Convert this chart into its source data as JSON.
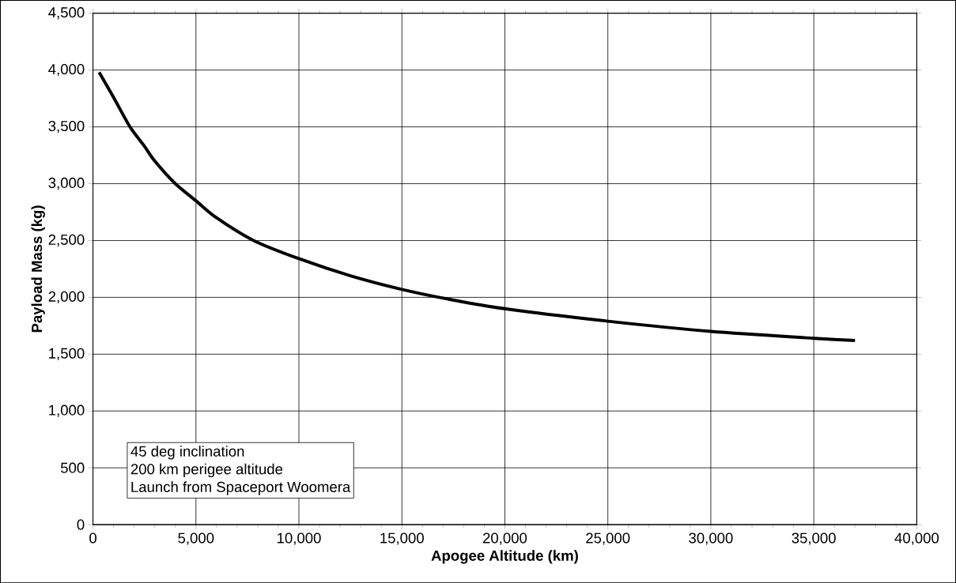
{
  "chart_data": {
    "type": "line",
    "xlabel": "Apogee Altitude (km)",
    "ylabel": "Payload Mass (kg)",
    "x": [
      300,
      1000,
      1800,
      2500,
      3000,
      4000,
      5000,
      6000,
      7800,
      10000,
      12500,
      15000,
      17100,
      20000,
      25000,
      30000,
      35000,
      37000
    ],
    "values": [
      3980,
      3760,
      3500,
      3330,
      3200,
      3000,
      2850,
      2700,
      2500,
      2340,
      2190,
      2070,
      1990,
      1900,
      1790,
      1700,
      1640,
      1620
    ],
    "color": "#000000",
    "xlim": [
      0,
      40000
    ],
    "ylim": [
      0,
      4500
    ],
    "xticks": [
      {
        "value": 0,
        "label": "0"
      },
      {
        "value": 5000,
        "label": "5,000"
      },
      {
        "value": 10000,
        "label": "10,000"
      },
      {
        "value": 15000,
        "label": "15,000"
      },
      {
        "value": 20000,
        "label": "20,000"
      },
      {
        "value": 25000,
        "label": "25,000"
      },
      {
        "value": 30000,
        "label": "30,000"
      },
      {
        "value": 35000,
        "label": "35,000"
      },
      {
        "value": 40000,
        "label": "40,000"
      }
    ],
    "yticks": [
      {
        "value": 0,
        "label": "0"
      },
      {
        "value": 500,
        "label": "500"
      },
      {
        "value": 1000,
        "label": "1,000"
      },
      {
        "value": 1500,
        "label": "1,500"
      },
      {
        "value": 2000,
        "label": "2,000"
      },
      {
        "value": 2500,
        "label": "2,500"
      },
      {
        "value": 3000,
        "label": "3,000"
      },
      {
        "value": 3500,
        "label": "3,500"
      },
      {
        "value": 4000,
        "label": "4,000"
      },
      {
        "value": 4500,
        "label": "4,500"
      }
    ],
    "grid": true,
    "marker": "none",
    "line_style": "solid",
    "annotations": [
      "45 deg inclination",
      "200 km perigee altitude",
      "Launch from Spaceport Woomera"
    ]
  }
}
